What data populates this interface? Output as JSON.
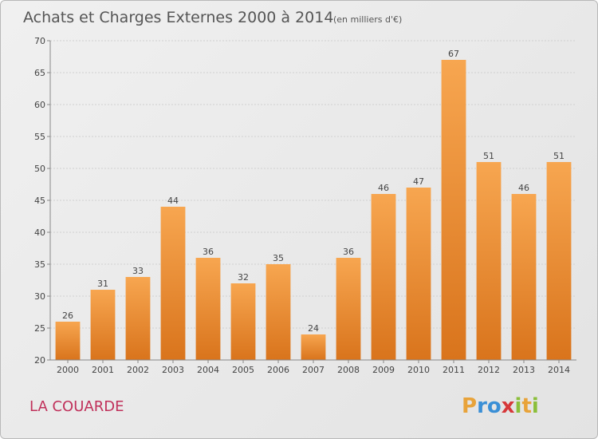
{
  "chart_data": {
    "type": "bar",
    "title": "Achats et Charges Externes 2000 à 2014",
    "subtitle": "(en milliers d'€)",
    "categories": [
      "2000",
      "2001",
      "2002",
      "2003",
      "2004",
      "2005",
      "2006",
      "2007",
      "2008",
      "2009",
      "2010",
      "2011",
      "2012",
      "2013",
      "2014"
    ],
    "values": [
      26,
      31,
      33,
      44,
      36,
      32,
      35,
      24,
      36,
      46,
      47,
      67,
      51,
      46,
      51
    ],
    "ylim": [
      20,
      70
    ],
    "yticks": [
      20,
      25,
      30,
      35,
      40,
      45,
      50,
      55,
      60,
      65,
      70
    ],
    "grid": true,
    "bar_color": "#f0923a"
  },
  "footer": {
    "commune": "LA COUARDE",
    "logo_letters": [
      "P",
      "r",
      "o",
      "x",
      "i",
      "t",
      "i"
    ],
    "logo_colors": [
      "#e8a33a",
      "#3a8fd6",
      "#3a8fd6",
      "#d6383a",
      "#8bbf3a",
      "#e8a33a",
      "#8bbf3a"
    ]
  }
}
